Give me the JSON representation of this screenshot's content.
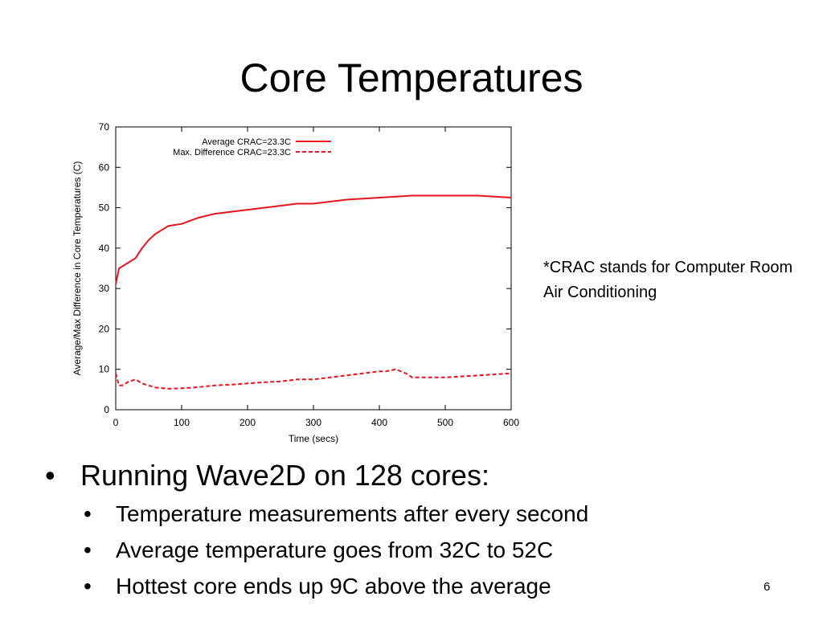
{
  "title": "Core Temperatures",
  "note": "*CRAC stands for Computer Room Air Conditioning",
  "bullets": {
    "main": "Running Wave2D on 128 cores:",
    "sub": [
      "Temperature measurements after every second",
      "Average temperature goes from 32C to 52C",
      "Hottest core ends up 9C above the average"
    ]
  },
  "page_number": "6",
  "chart_data": {
    "type": "line",
    "xlabel": "Time (secs)",
    "ylabel": "Average/Max Difference in Core Temperatures (C)",
    "xlim": [
      0,
      600
    ],
    "ylim": [
      0,
      70
    ],
    "x_ticks": [
      "0",
      "100",
      "200",
      "300",
      "400",
      "500",
      "600"
    ],
    "y_ticks": [
      "0",
      "10",
      "20",
      "30",
      "40",
      "50",
      "60",
      "70"
    ],
    "grid": false,
    "legend_position": "top",
    "series": [
      {
        "name": "Average CRAC=23.3C",
        "style": "solid",
        "color": "#e8141c",
        "x": [
          0,
          5,
          10,
          20,
          30,
          40,
          50,
          60,
          80,
          100,
          125,
          150,
          175,
          200,
          225,
          250,
          275,
          300,
          350,
          400,
          450,
          500,
          550,
          600
        ],
        "y": [
          31,
          35,
          35.5,
          36.5,
          37.5,
          40,
          42,
          43.5,
          45.5,
          46,
          47.5,
          48.5,
          49,
          49.5,
          50,
          50.5,
          51,
          51,
          52,
          52.5,
          53,
          53,
          53,
          52.5
        ]
      },
      {
        "name": "Max. Difference CRAC=23.3C",
        "style": "dashed",
        "color": "#e8141c",
        "x": [
          0,
          5,
          10,
          20,
          30,
          40,
          60,
          80,
          100,
          120,
          150,
          175,
          200,
          225,
          250,
          275,
          300,
          325,
          350,
          375,
          400,
          410,
          425,
          440,
          450,
          500,
          550,
          600
        ],
        "y": [
          9,
          6,
          6,
          7,
          7.5,
          6.5,
          5.5,
          5.2,
          5.3,
          5.5,
          6,
          6.2,
          6.5,
          6.8,
          7,
          7.5,
          7.5,
          8,
          8.5,
          9,
          9.5,
          9.5,
          10,
          9,
          8,
          8,
          8.5,
          9
        ]
      }
    ]
  }
}
